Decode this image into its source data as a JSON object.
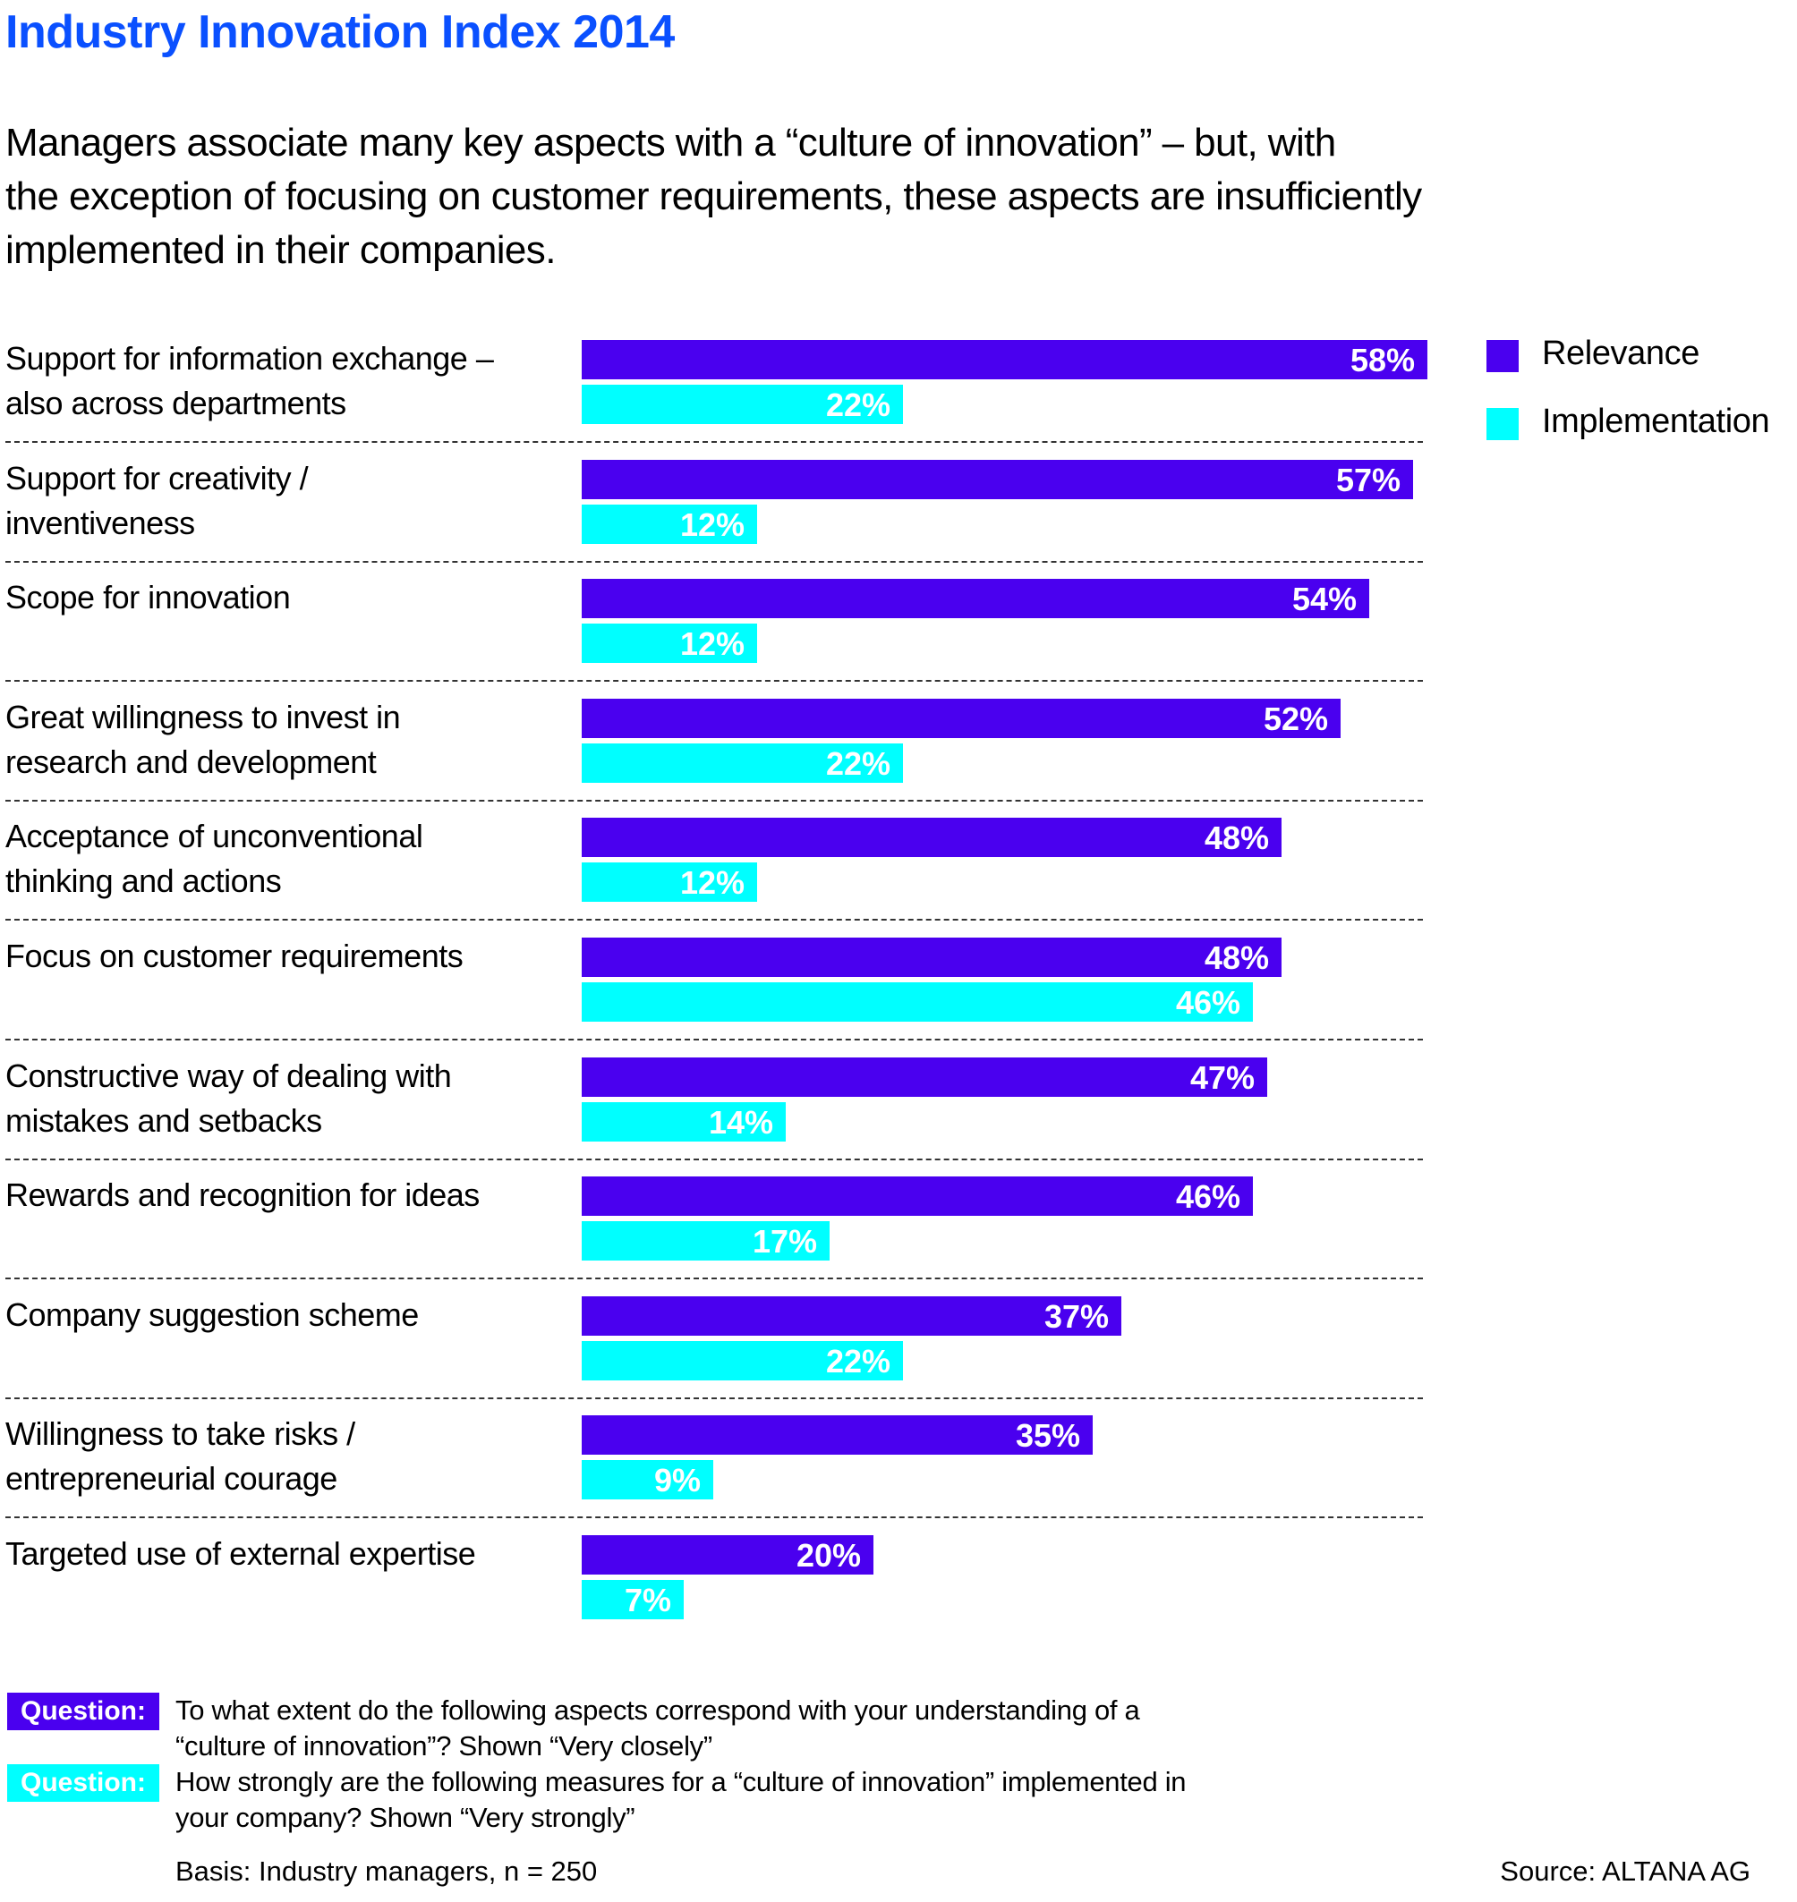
{
  "header": {
    "title": "Industry Innovation Index 2014",
    "subtitle_lines": [
      "Managers associate many key aspects with a “culture of innovation” – but, with",
      "the exception of focusing on customer requirements, these aspects are insufficiently",
      "implemented in their companies."
    ]
  },
  "colors": {
    "title": "#0A50FF",
    "relevance": "#4A00EF",
    "implementation": "#00FFFF"
  },
  "chart_data": {
    "type": "bar",
    "orientation": "horizontal",
    "title": "Industry Innovation Index 2014",
    "xlabel": "",
    "ylabel": "",
    "xlim": [
      0,
      60
    ],
    "unit": "%",
    "grid": false,
    "legend_position": "top-right",
    "categories": [
      [
        "Support for information exchange –",
        "also across departments"
      ],
      [
        "Support for creativity /",
        "inventiveness"
      ],
      [
        "Scope for innovation"
      ],
      [
        "Great willingness to invest in",
        "research and development"
      ],
      [
        "Acceptance of unconventional",
        "thinking and actions"
      ],
      [
        "Focus on customer requirements"
      ],
      [
        "Constructive way of dealing with",
        "mistakes and setbacks"
      ],
      [
        "Rewards and recognition for ideas"
      ],
      [
        "Company suggestion scheme"
      ],
      [
        "Willingness to take risks /",
        "entrepreneurial courage"
      ],
      [
        "Targeted use of external expertise"
      ]
    ],
    "series": [
      {
        "name": "Relevance",
        "values": [
          58,
          57,
          54,
          52,
          48,
          48,
          47,
          46,
          37,
          35,
          20
        ],
        "labels": [
          "58%",
          "57%",
          "54%",
          "52%",
          "48%",
          "48%",
          "47%",
          "46%",
          "37%",
          "35%",
          "20%"
        ]
      },
      {
        "name": "Implementation",
        "values": [
          22,
          12,
          12,
          22,
          12,
          46,
          14,
          17,
          22,
          9,
          7
        ],
        "labels": [
          "22%",
          "12%",
          "12%",
          "22%",
          "12%",
          "46%",
          "14%",
          "17%",
          "22%",
          "9%",
          "7%"
        ]
      }
    ]
  },
  "legend": {
    "items": [
      {
        "label": "Relevance"
      },
      {
        "label": "Implementation"
      }
    ]
  },
  "footer": {
    "questions": [
      {
        "badge": "Question:",
        "lines": [
          "To what extent do the following aspects correspond with your understanding of a",
          "“culture of innovation”? Shown “Very closely”"
        ]
      },
      {
        "badge": "Question:",
        "lines": [
          "How strongly are the following measures for a “culture of innovation” implemented in",
          "your company? Shown “Very strongly”"
        ]
      }
    ],
    "basis": "Basis: Industry managers, n = 250",
    "source": "Source: ALTANA AG"
  }
}
